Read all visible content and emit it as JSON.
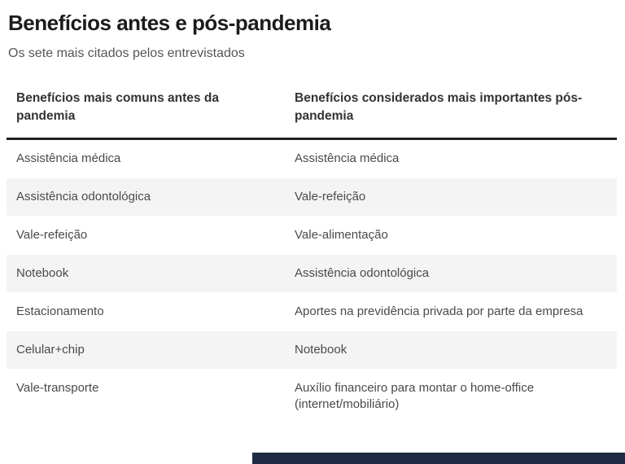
{
  "header": {
    "title": "Benefícios antes e pós-pandemia",
    "subtitle": "Os sete mais citados pelos entrevistados"
  },
  "table": {
    "columns": [
      "Benefícios mais comuns antes da pandemia",
      "Benefícios considerados mais importantes pós-pandemia"
    ],
    "rows": [
      [
        "Assistência médica",
        "Assistência médica"
      ],
      [
        "Assistência odontológica",
        "Vale-refeição"
      ],
      [
        "Vale-refeição",
        "Vale-alimentação"
      ],
      [
        "Notebook",
        "Assistência odontológica"
      ],
      [
        "Estacionamento",
        "Aportes na previdência privada por parte da empresa"
      ],
      [
        "Celular+chip",
        "Notebook"
      ],
      [
        "Vale-transporte",
        "Auxílio financeiro para montar o home-office (internet/mobiliário)"
      ]
    ]
  },
  "colors": {
    "title_text": "#1c1c1c",
    "subtitle_text": "#565656",
    "header_text": "#333333",
    "row_text": "#4a4a4a",
    "stripe": "#f4f4f4",
    "header_divider": "#222222",
    "bottom_bar": "#1f2a44"
  },
  "chart_data": {
    "type": "table",
    "title": "Benefícios antes e pós-pandemia",
    "subtitle": "Os sete mais citados pelos entrevistados",
    "columns": [
      "Benefícios mais comuns antes da pandemia",
      "Benefícios considerados mais importantes pós-pandemia"
    ],
    "rows": [
      [
        "Assistência médica",
        "Assistência médica"
      ],
      [
        "Assistência odontológica",
        "Vale-refeição"
      ],
      [
        "Vale-refeição",
        "Vale-alimentação"
      ],
      [
        "Notebook",
        "Assistência odontológica"
      ],
      [
        "Estacionamento",
        "Aportes na previdência privada por parte da empresa"
      ],
      [
        "Celular+chip",
        "Notebook"
      ],
      [
        "Vale-transporte",
        "Auxílio financeiro para montar o home-office (internet/mobiliário)"
      ]
    ]
  }
}
